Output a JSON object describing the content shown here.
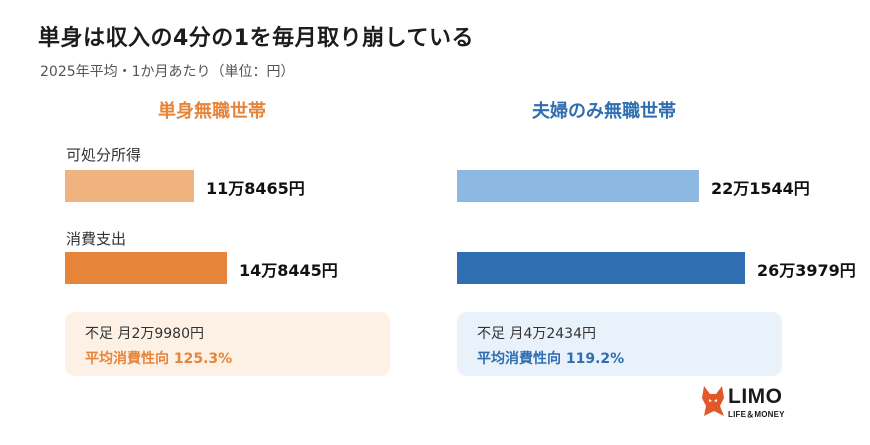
{
  "header": {
    "title": "単身は収入の4分の1を毎月取り崩している",
    "subtitle": "2025年平均・1か月あたり（単位：円）"
  },
  "rows": {
    "income_label": "可処分所得",
    "spending_label": "消費支出"
  },
  "colors": {
    "single_income": "#f0b27e",
    "single_spending": "#e6853a",
    "couple_income": "#8db8e2",
    "couple_spending": "#2f6eb0"
  },
  "chart_data": {
    "type": "bar",
    "orientation": "horizontal",
    "groups": [
      {
        "title": "単身無職世帯",
        "bars": [
          {
            "category": "可処分所得",
            "value": 118465,
            "label": "11万8465円",
            "color": "#f0b27e"
          },
          {
            "category": "消費支出",
            "value": 148445,
            "label": "14万8445円",
            "color": "#e6853a"
          }
        ],
        "summary": {
          "shortfall": "不足 月2万9980円",
          "ratio": "平均消費性向 125.3%"
        }
      },
      {
        "title": "夫婦のみ無職世帯",
        "bars": [
          {
            "category": "可処分所得",
            "value": 221544,
            "label": "22万1544円",
            "color": "#8db8e2"
          },
          {
            "category": "消費支出",
            "value": 263979,
            "label": "26万3979円",
            "color": "#2f6eb0"
          }
        ],
        "summary": {
          "shortfall": "不足 月4万2434円",
          "ratio": "平均消費性向 119.2%"
        }
      }
    ]
  },
  "logo": {
    "name": "LIMO",
    "tagline": "LIFE＆MONEY",
    "icon": "fox-icon"
  }
}
